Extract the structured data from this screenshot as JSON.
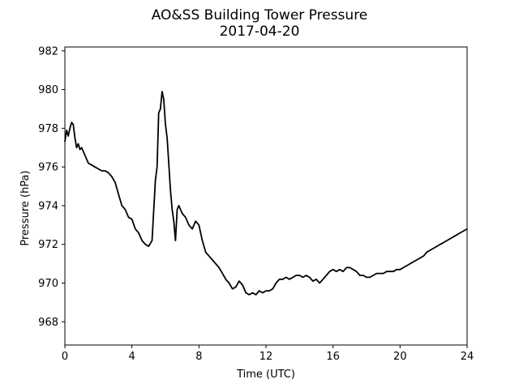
{
  "chart_data": {
    "type": "line",
    "title": "AO&SS Building Tower Pressure",
    "subtitle": "2017-04-20",
    "xlabel": "Time (UTC)",
    "ylabel": "Pressure (hPa)",
    "xlim": [
      0,
      24
    ],
    "ylim": [
      966.8,
      982.2
    ],
    "xticks": [
      0,
      4,
      8,
      12,
      16,
      20,
      24
    ],
    "yticks": [
      968,
      970,
      972,
      974,
      976,
      978,
      980,
      982
    ],
    "grid": false,
    "legend": "none",
    "line_color": "#000000",
    "series": [
      {
        "x": [
          0.0,
          0.1,
          0.2,
          0.3,
          0.4,
          0.5,
          0.6,
          0.7,
          0.8,
          0.9,
          1.0,
          1.2,
          1.4,
          1.6,
          1.8,
          2.0,
          2.2,
          2.4,
          2.6,
          2.8,
          3.0,
          3.2,
          3.4,
          3.6,
          3.8,
          4.0,
          4.2,
          4.4,
          4.6,
          4.8,
          5.0,
          5.2,
          5.4,
          5.5,
          5.6,
          5.7,
          5.8,
          5.9,
          6.0,
          6.1,
          6.2,
          6.3,
          6.4,
          6.5,
          6.6,
          6.7,
          6.8,
          6.9,
          7.0,
          7.2,
          7.4,
          7.6,
          7.8,
          8.0,
          8.2,
          8.4,
          8.6,
          8.8,
          9.0,
          9.2,
          9.4,
          9.6,
          9.8,
          10.0,
          10.2,
          10.4,
          10.6,
          10.8,
          11.0,
          11.2,
          11.4,
          11.6,
          11.8,
          12.0,
          12.2,
          12.4,
          12.6,
          12.8,
          13.0,
          13.2,
          13.4,
          13.6,
          13.8,
          14.0,
          14.2,
          14.4,
          14.6,
          14.8,
          15.0,
          15.2,
          15.4,
          15.6,
          15.8,
          16.0,
          16.2,
          16.4,
          16.6,
          16.8,
          17.0,
          17.2,
          17.4,
          17.6,
          17.8,
          18.0,
          18.2,
          18.4,
          18.6,
          18.8,
          19.0,
          19.2,
          19.4,
          19.6,
          19.8,
          20.0,
          20.2,
          20.4,
          20.6,
          20.8,
          21.0,
          21.2,
          21.4,
          21.6,
          21.8,
          22.0,
          22.2,
          22.4,
          22.6,
          22.8,
          23.0,
          23.2,
          23.4,
          23.6,
          23.8,
          24.0
        ],
        "y": [
          977.3,
          977.9,
          977.6,
          978.0,
          978.3,
          978.2,
          977.5,
          977.0,
          977.2,
          976.9,
          977.0,
          976.6,
          976.2,
          976.1,
          976.0,
          975.9,
          975.8,
          975.8,
          975.7,
          975.5,
          975.2,
          974.6,
          974.0,
          973.8,
          973.4,
          973.3,
          972.8,
          972.6,
          972.2,
          972.0,
          971.9,
          972.2,
          975.3,
          976.0,
          978.8,
          979.0,
          979.9,
          979.5,
          978.2,
          977.5,
          976.2,
          974.8,
          973.8,
          973.2,
          972.2,
          973.8,
          974.0,
          973.8,
          973.6,
          973.4,
          973.0,
          972.8,
          973.2,
          973.0,
          972.2,
          971.6,
          971.4,
          971.2,
          971.0,
          970.8,
          970.5,
          970.2,
          970.0,
          969.7,
          969.8,
          970.1,
          969.9,
          969.5,
          969.4,
          969.5,
          969.4,
          969.6,
          969.5,
          969.6,
          969.6,
          969.7,
          970.0,
          970.2,
          970.2,
          970.3,
          970.2,
          970.3,
          970.4,
          970.4,
          970.3,
          970.4,
          970.3,
          970.1,
          970.2,
          970.0,
          970.2,
          970.4,
          970.6,
          970.7,
          970.6,
          970.7,
          970.6,
          970.8,
          970.8,
          970.7,
          970.6,
          970.4,
          970.4,
          970.3,
          970.3,
          970.4,
          970.5,
          970.5,
          970.5,
          970.6,
          970.6,
          970.6,
          970.7,
          970.7,
          970.8,
          970.9,
          971.0,
          971.1,
          971.2,
          971.3,
          971.4,
          971.6,
          971.7,
          971.8,
          971.9,
          972.0,
          972.1,
          972.2,
          972.3,
          972.4,
          972.5,
          972.6,
          972.7,
          972.8
        ]
      }
    ]
  }
}
